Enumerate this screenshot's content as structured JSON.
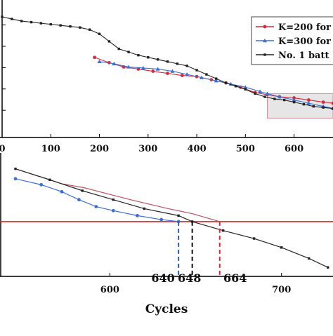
{
  "chart_data": [
    {
      "type": "line",
      "panel": "top",
      "title": "",
      "xlabel": "",
      "ylabel": "",
      "xlim": [
        0,
        680
      ],
      "ylim": [
        0,
        1
      ],
      "x_ticks": [
        0,
        100,
        200,
        300,
        400,
        500,
        600
      ],
      "grid": false,
      "legend_position": "top-right",
      "series": [
        {
          "name": "K=200 for",
          "color": "#d42a3c",
          "marker": "circle",
          "x": [
            190,
            220,
            250,
            280,
            310,
            340,
            370,
            400,
            430,
            460,
            490,
            520,
            545,
            570,
            600,
            630,
            660,
            680
          ],
          "y": [
            0.62,
            0.57,
            0.53,
            0.51,
            0.49,
            0.47,
            0.45,
            0.44,
            0.41,
            0.38,
            0.34,
            0.29,
            0.27,
            0.25,
            0.24,
            0.22,
            0.2,
            0.19
          ]
        },
        {
          "name": "K=300 for",
          "color": "#3a6fd8",
          "marker": "triangle",
          "x": [
            200,
            230,
            260,
            290,
            320,
            350,
            380,
            410,
            440,
            470,
            500,
            530,
            545,
            570,
            600,
            630,
            660,
            680
          ],
          "y": [
            0.58,
            0.56,
            0.53,
            0.52,
            0.51,
            0.49,
            0.46,
            0.43,
            0.4,
            0.37,
            0.34,
            0.3,
            0.28,
            0.25,
            0.22,
            0.19,
            0.16,
            0.14
          ]
        },
        {
          "name": "No. 1 batt",
          "color": "#222222",
          "marker": "square",
          "x": [
            0,
            20,
            40,
            60,
            80,
            100,
            120,
            140,
            160,
            180,
            200,
            220,
            240,
            260,
            280,
            300,
            320,
            340,
            360,
            380,
            400,
            420,
            440,
            460,
            480,
            500,
            520,
            540,
            560,
            580,
            600,
            620,
            640,
            660,
            680
          ],
          "y": [
            1.0,
            0.98,
            0.96,
            0.95,
            0.94,
            0.93,
            0.92,
            0.91,
            0.9,
            0.88,
            0.84,
            0.77,
            0.7,
            0.67,
            0.64,
            0.62,
            0.6,
            0.58,
            0.56,
            0.54,
            0.5,
            0.46,
            0.42,
            0.38,
            0.35,
            0.32,
            0.28,
            0.25,
            0.23,
            0.22,
            0.2,
            0.18,
            0.16,
            0.15,
            0.14
          ]
        }
      ],
      "highlight_region": {
        "x": [
          545,
          680
        ],
        "y": [
          0.05,
          0.28
        ]
      }
    },
    {
      "type": "line",
      "panel": "bottom",
      "title": "",
      "xlabel": "Cycles",
      "ylabel": "",
      "xlim": [
        545,
        730
      ],
      "ylim": [
        0,
        1
      ],
      "x_ticks": [
        600,
        700
      ],
      "grid": false,
      "threshold_y": 0.55,
      "series": [
        {
          "name": "K=200 for",
          "color": "#c0505a",
          "marker": "none",
          "x": [
            545,
            572,
            585,
            612,
            634,
            648,
            664
          ],
          "y": [
            1.08,
            0.93,
            0.89,
            0.77,
            0.68,
            0.63,
            0.55
          ]
        },
        {
          "name": "K=300 for",
          "color": "#3a6fd8",
          "marker": "circle",
          "x": [
            545,
            560,
            572,
            582,
            592,
            602,
            616,
            630,
            640
          ],
          "y": [
            0.98,
            0.92,
            0.85,
            0.77,
            0.7,
            0.66,
            0.61,
            0.57,
            0.55
          ]
        },
        {
          "name": "No. 1 batt",
          "color": "#222222",
          "marker": "square",
          "x": [
            545,
            565,
            584,
            602,
            620,
            640,
            648,
            666,
            684,
            700,
            716,
            727
          ],
          "y": [
            1.08,
            0.97,
            0.86,
            0.77,
            0.68,
            0.61,
            0.55,
            0.46,
            0.38,
            0.29,
            0.18,
            0.09
          ]
        }
      ],
      "annotations": [
        {
          "label": "640",
          "x": 640,
          "color": "#2c5fbf"
        },
        {
          "label": "648",
          "x": 648,
          "color": "#111111"
        },
        {
          "label": "664",
          "x": 664,
          "color": "#d42a3c"
        }
      ]
    }
  ]
}
